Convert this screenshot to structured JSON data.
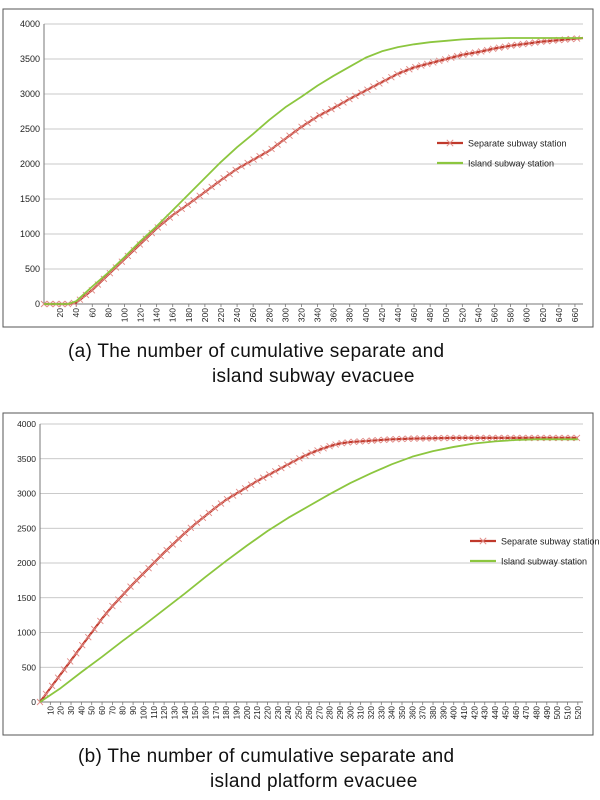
{
  "charts": [
    {
      "caption_line1": "(a)  The  number  of  cumulative  separate  and",
      "caption_line2": "island  subway  evacuee",
      "chart_data": {
        "type": "line",
        "ylim": [
          0,
          4000
        ],
        "yticks": [
          0,
          500,
          1000,
          1500,
          2000,
          2500,
          3000,
          3500,
          4000
        ],
        "xlim": [
          0,
          670
        ],
        "xtick_start": 20,
        "xtick_step": 20,
        "xtick_end": 660,
        "grid": true,
        "legend_placement": "right",
        "series": [
          {
            "name": "Separate subway station",
            "color": "#c0392b",
            "marker": "x",
            "x": [
              0,
              20,
              30,
              40,
              60,
              80,
              100,
              120,
              140,
              160,
              180,
              200,
              220,
              240,
              260,
              280,
              300,
              320,
              340,
              360,
              380,
              400,
              420,
              440,
              460,
              480,
              500,
              520,
              540,
              560,
              580,
              600,
              620,
              640,
              660,
              670
            ],
            "y": [
              0,
              0,
              0,
              20,
              200,
              420,
              640,
              860,
              1080,
              1270,
              1430,
              1600,
              1770,
              1930,
              2060,
              2190,
              2360,
              2530,
              2680,
              2800,
              2930,
              3050,
              3170,
              3290,
              3380,
              3440,
              3500,
              3560,
              3600,
              3650,
              3690,
              3720,
              3750,
              3770,
              3790,
              3800
            ]
          },
          {
            "name": "Island subway station",
            "color": "#8cc63f",
            "marker": "none",
            "x": [
              0,
              20,
              30,
              40,
              60,
              80,
              100,
              120,
              140,
              160,
              180,
              200,
              220,
              240,
              260,
              280,
              300,
              320,
              340,
              360,
              380,
              400,
              420,
              440,
              460,
              480,
              500,
              520,
              540,
              560,
              580,
              600,
              620,
              640,
              660,
              670
            ],
            "y": [
              0,
              0,
              0,
              40,
              250,
              450,
              670,
              900,
              1110,
              1340,
              1570,
              1800,
              2030,
              2240,
              2430,
              2630,
              2810,
              2960,
              3120,
              3260,
              3390,
              3520,
              3610,
              3670,
              3710,
              3740,
              3760,
              3780,
              3790,
              3795,
              3800,
              3800,
              3800,
              3800,
              3800,
              3800
            ]
          }
        ]
      }
    },
    {
      "caption_line1": "(b)  The  number  of  cumulative  separate  and",
      "caption_line2": "island  platform  evacuee",
      "chart_data": {
        "type": "line",
        "ylim": [
          0,
          4000
        ],
        "yticks": [
          0,
          500,
          1000,
          1500,
          2000,
          2500,
          3000,
          3500,
          4000
        ],
        "xlim": [
          0,
          525
        ],
        "xtick_start": 10,
        "xtick_step": 10,
        "xtick_end": 520,
        "grid": true,
        "legend_placement": "right",
        "series": [
          {
            "name": "Separate subway station",
            "color": "#c0392b",
            "marker": "x",
            "x": [
              0,
              10,
              20,
              30,
              40,
              50,
              60,
              70,
              80,
              90,
              100,
              110,
              120,
              130,
              140,
              150,
              160,
              170,
              180,
              190,
              200,
              210,
              220,
              230,
              240,
              250,
              260,
              270,
              280,
              290,
              300,
              320,
              340,
              360,
              380,
              400,
              420,
              440,
              460,
              480,
              500,
              520
            ],
            "y": [
              0,
              200,
              400,
              600,
              800,
              1000,
              1200,
              1380,
              1540,
              1700,
              1850,
              2000,
              2150,
              2290,
              2430,
              2560,
              2680,
              2800,
              2910,
              3000,
              3090,
              3180,
              3260,
              3340,
              3420,
              3500,
              3570,
              3630,
              3680,
              3720,
              3740,
              3760,
              3780,
              3790,
              3795,
              3800,
              3800,
              3800,
              3800,
              3800,
              3800,
              3800
            ]
          },
          {
            "name": "Island subway station",
            "color": "#8cc63f",
            "marker": "none",
            "x": [
              0,
              20,
              40,
              60,
              80,
              100,
              120,
              140,
              160,
              180,
              200,
              220,
              240,
              260,
              280,
              300,
              320,
              340,
              360,
              380,
              400,
              420,
              440,
              460,
              480,
              500,
              520
            ],
            "y": [
              0,
              200,
              430,
              650,
              880,
              1100,
              1330,
              1560,
              1800,
              2030,
              2250,
              2460,
              2650,
              2820,
              2990,
              3150,
              3290,
              3420,
              3530,
              3610,
              3670,
              3720,
              3750,
              3770,
              3780,
              3780,
              3780
            ]
          }
        ]
      }
    }
  ]
}
